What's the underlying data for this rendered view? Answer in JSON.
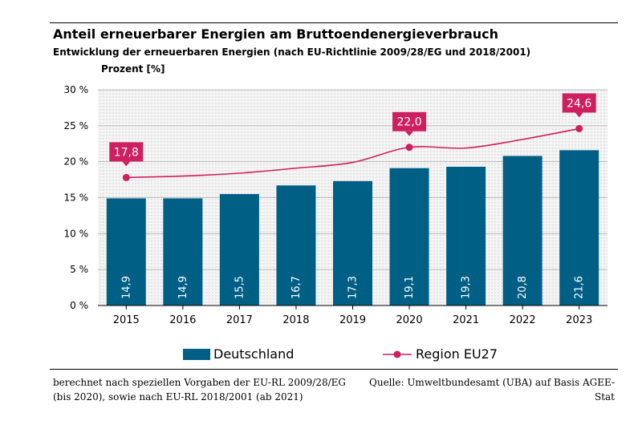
{
  "header": {
    "title": "Anteil erneuerbarer Energien am Bruttoendenergieverbrauch",
    "subtitle": "Entwicklung der erneuerbaren Energien (nach EU-Richtlinie 2009/28/EG und 2018/2001)",
    "unit_label": "Prozent [%]"
  },
  "chart_data": {
    "type": "bar",
    "title": "Anteil erneuerbarer Energien am Bruttoendenergieverbrauch",
    "xlabel": "",
    "ylabel": "Prozent [%]",
    "ylim": [
      0,
      30
    ],
    "yticks": [
      0,
      5,
      10,
      15,
      20,
      25,
      30
    ],
    "ytick_labels": [
      "0 %",
      "5 %",
      "10 %",
      "15 %",
      "20 %",
      "25 %",
      "30 %"
    ],
    "categories": [
      "2015",
      "2016",
      "2017",
      "2018",
      "2019",
      "2020",
      "2021",
      "2022",
      "2023"
    ],
    "series": [
      {
        "name": "Deutschland",
        "type": "bar",
        "color": "#005f85",
        "values": [
          14.9,
          14.9,
          15.5,
          16.7,
          17.3,
          19.1,
          19.3,
          20.8,
          21.6
        ],
        "labels": [
          "14,9",
          "14,9",
          "15,5",
          "16,7",
          "17,3",
          "19,1",
          "19,3",
          "20,8",
          "21,6"
        ]
      },
      {
        "name": "Region EU27",
        "type": "line",
        "color": "#ce1f5e",
        "values": [
          17.8,
          18.0,
          18.4,
          19.1,
          19.9,
          22.0,
          21.9,
          23.1,
          24.6
        ],
        "labeled_points": [
          {
            "category": "2015",
            "label": "17,8"
          },
          {
            "category": "2020",
            "label": "22,0"
          },
          {
            "category": "2023",
            "label": "24,6"
          }
        ]
      }
    ],
    "grid": true,
    "legend_position": "bottom"
  },
  "footnote": {
    "left": "berechnet nach speziellen Vorgaben der EU-RL 2009/28/EG (bis 2020), sowie nach EU-RL 2018/2001 (ab 2021)",
    "right": "Quelle: Umweltbundesamt (UBA) auf Basis AGEE-Stat"
  }
}
